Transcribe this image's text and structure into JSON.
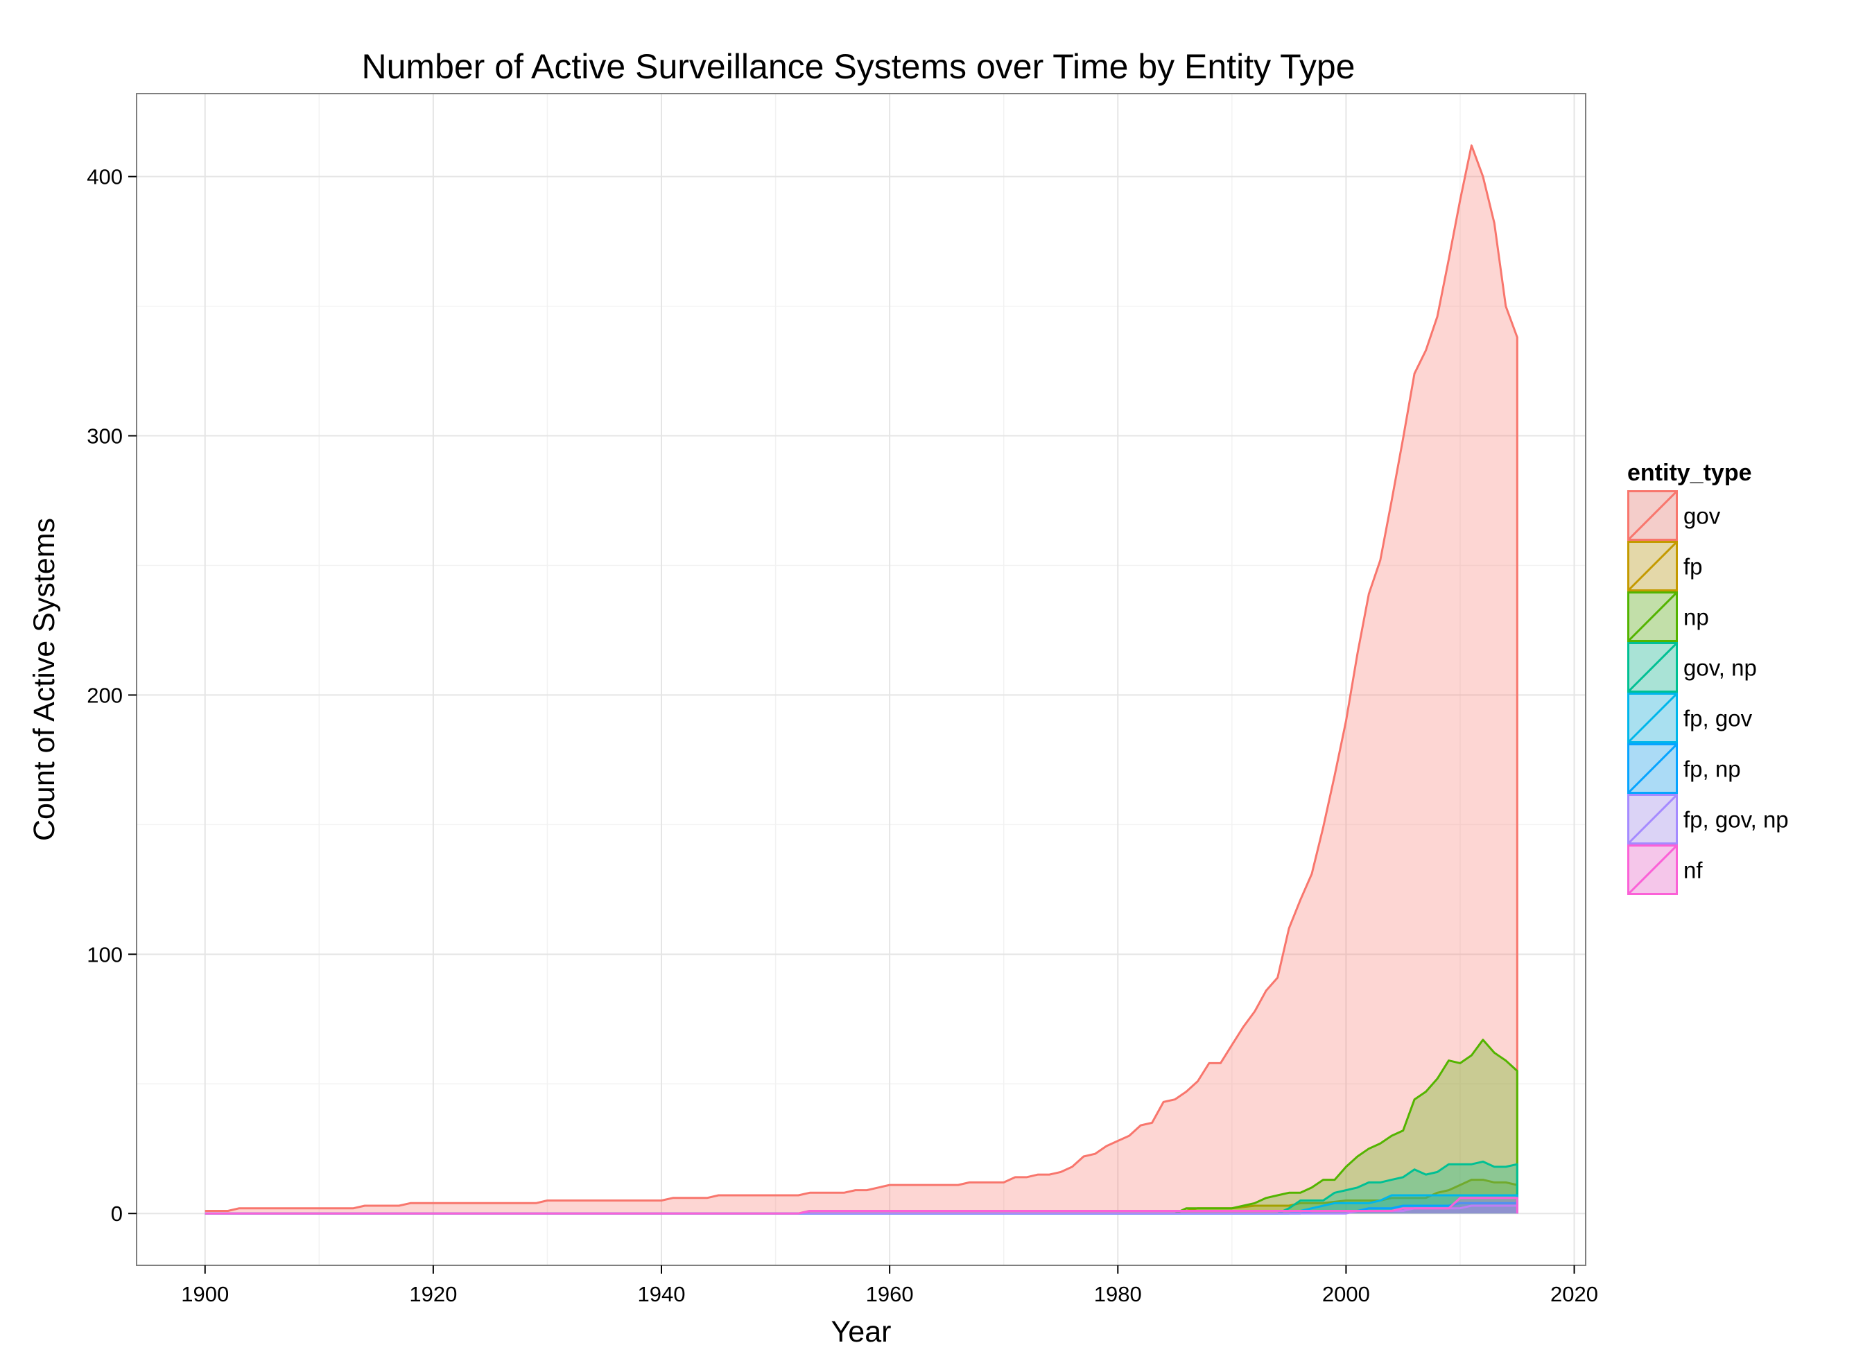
{
  "chart_data": {
    "type": "area",
    "title": "Number of Active Surveillance Systems over Time by Entity Type",
    "xlabel": "Year",
    "ylabel": "Count of Active Systems",
    "xlim": [
      1894,
      2021
    ],
    "ylim": [
      -20,
      432
    ],
    "x_ticks": [
      1900,
      1920,
      1940,
      1960,
      1980,
      2000,
      2020
    ],
    "y_ticks": [
      0,
      100,
      200,
      300,
      400
    ],
    "grid": true,
    "legend": {
      "title": "entity_type",
      "position": "right"
    },
    "series": [
      {
        "name": "gov",
        "color": "#F8766D",
        "points": [
          [
            1900,
            1
          ],
          [
            1902,
            1
          ],
          [
            1903,
            2
          ],
          [
            1913,
            2
          ],
          [
            1914,
            3
          ],
          [
            1917,
            3
          ],
          [
            1918,
            4
          ],
          [
            1929,
            4
          ],
          [
            1930,
            5
          ],
          [
            1940,
            5
          ],
          [
            1941,
            6
          ],
          [
            1944,
            6
          ],
          [
            1945,
            7
          ],
          [
            1952,
            7
          ],
          [
            1953,
            8
          ],
          [
            1956,
            8
          ],
          [
            1957,
            9
          ],
          [
            1958,
            9
          ],
          [
            1960,
            11
          ],
          [
            1966,
            11
          ],
          [
            1967,
            12
          ],
          [
            1970,
            12
          ],
          [
            1971,
            14
          ],
          [
            1972,
            14
          ],
          [
            1973,
            15
          ],
          [
            1974,
            15
          ],
          [
            1975,
            16
          ],
          [
            1976,
            18
          ],
          [
            1977,
            22
          ],
          [
            1978,
            23
          ],
          [
            1979,
            26
          ],
          [
            1980,
            28
          ],
          [
            1981,
            30
          ],
          [
            1982,
            34
          ],
          [
            1983,
            35
          ],
          [
            1984,
            43
          ],
          [
            1985,
            44
          ],
          [
            1986,
            47
          ],
          [
            1987,
            51
          ],
          [
            1988,
            58
          ],
          [
            1989,
            58
          ],
          [
            1990,
            65
          ],
          [
            1991,
            72
          ],
          [
            1992,
            78
          ],
          [
            1993,
            86
          ],
          [
            1994,
            91
          ],
          [
            1995,
            110
          ],
          [
            1996,
            121
          ],
          [
            1997,
            131
          ],
          [
            1998,
            149
          ],
          [
            1999,
            169
          ],
          [
            2000,
            190
          ],
          [
            2001,
            216
          ],
          [
            2002,
            239
          ],
          [
            2003,
            252
          ],
          [
            2004,
            275
          ],
          [
            2005,
            299
          ],
          [
            2006,
            324
          ],
          [
            2007,
            333
          ],
          [
            2008,
            346
          ],
          [
            2009,
            368
          ],
          [
            2010,
            391
          ],
          [
            2011,
            412
          ],
          [
            2012,
            400
          ],
          [
            2013,
            382
          ],
          [
            2014,
            350
          ],
          [
            2015,
            338
          ]
        ]
      },
      {
        "name": "fp",
        "color": "#C49A00",
        "points": [
          [
            1900,
            0
          ],
          [
            1952,
            0
          ],
          [
            1953,
            1
          ],
          [
            1986,
            1
          ],
          [
            1987,
            2
          ],
          [
            1990,
            2
          ],
          [
            1992,
            3
          ],
          [
            1995,
            3
          ],
          [
            1996,
            4
          ],
          [
            1998,
            4
          ],
          [
            2000,
            5
          ],
          [
            2003,
            5
          ],
          [
            2004,
            6
          ],
          [
            2007,
            6
          ],
          [
            2008,
            8
          ],
          [
            2009,
            9
          ],
          [
            2010,
            11
          ],
          [
            2011,
            13
          ],
          [
            2012,
            13
          ],
          [
            2013,
            12
          ],
          [
            2014,
            12
          ],
          [
            2015,
            11
          ]
        ]
      },
      {
        "name": "np",
        "color": "#53B400",
        "points": [
          [
            1900,
            0
          ],
          [
            1985,
            0
          ],
          [
            1986,
            2
          ],
          [
            1990,
            2
          ],
          [
            1991,
            3
          ],
          [
            1992,
            4
          ],
          [
            1993,
            6
          ],
          [
            1994,
            7
          ],
          [
            1995,
            8
          ],
          [
            1996,
            8
          ],
          [
            1997,
            10
          ],
          [
            1998,
            13
          ],
          [
            1999,
            13
          ],
          [
            2000,
            18
          ],
          [
            2001,
            22
          ],
          [
            2002,
            25
          ],
          [
            2003,
            27
          ],
          [
            2004,
            30
          ],
          [
            2005,
            32
          ],
          [
            2006,
            44
          ],
          [
            2007,
            47
          ],
          [
            2008,
            52
          ],
          [
            2009,
            59
          ],
          [
            2010,
            58
          ],
          [
            2011,
            61
          ],
          [
            2012,
            67
          ],
          [
            2013,
            62
          ],
          [
            2014,
            59
          ],
          [
            2015,
            55
          ]
        ]
      },
      {
        "name": "gov, np",
        "color": "#00C094",
        "points": [
          [
            1900,
            0
          ],
          [
            1994,
            0
          ],
          [
            1995,
            2
          ],
          [
            1996,
            5
          ],
          [
            1998,
            5
          ],
          [
            1999,
            8
          ],
          [
            2000,
            9
          ],
          [
            2001,
            10
          ],
          [
            2002,
            12
          ],
          [
            2003,
            12
          ],
          [
            2004,
            13
          ],
          [
            2005,
            14
          ],
          [
            2006,
            17
          ],
          [
            2007,
            15
          ],
          [
            2008,
            16
          ],
          [
            2009,
            19
          ],
          [
            2011,
            19
          ],
          [
            2012,
            20
          ],
          [
            2013,
            18
          ],
          [
            2014,
            18
          ],
          [
            2015,
            19
          ]
        ]
      },
      {
        "name": "fp, gov",
        "color": "#00B6EB",
        "points": [
          [
            1900,
            0
          ],
          [
            1995,
            0
          ],
          [
            1996,
            1
          ],
          [
            1997,
            2
          ],
          [
            1998,
            3
          ],
          [
            1999,
            4
          ],
          [
            2000,
            4
          ],
          [
            2002,
            4
          ],
          [
            2003,
            5
          ],
          [
            2004,
            7
          ],
          [
            2009,
            7
          ],
          [
            2010,
            7
          ],
          [
            2015,
            7
          ]
        ]
      },
      {
        "name": "fp, np",
        "color": "#06A4FF",
        "points": [
          [
            1900,
            0
          ],
          [
            1996,
            0
          ],
          [
            1997,
            1
          ],
          [
            2001,
            1
          ],
          [
            2002,
            2
          ],
          [
            2004,
            2
          ],
          [
            2005,
            3
          ],
          [
            2009,
            3
          ],
          [
            2010,
            4
          ],
          [
            2015,
            4
          ]
        ]
      },
      {
        "name": "fp, gov, np",
        "color": "#A58AFF",
        "points": [
          [
            1900,
            0
          ],
          [
            2000,
            0
          ],
          [
            2001,
            1
          ],
          [
            2005,
            1
          ],
          [
            2006,
            2
          ],
          [
            2010,
            2
          ],
          [
            2011,
            3
          ],
          [
            2015,
            3
          ]
        ]
      },
      {
        "name": "nf",
        "color": "#FB61D7",
        "points": [
          [
            1900,
            0
          ],
          [
            1952,
            0
          ],
          [
            1953,
            1
          ],
          [
            1994,
            1
          ],
          [
            1995,
            1
          ],
          [
            2004,
            1
          ],
          [
            2005,
            2
          ],
          [
            2009,
            2
          ],
          [
            2010,
            6
          ],
          [
            2015,
            6
          ]
        ]
      }
    ]
  }
}
